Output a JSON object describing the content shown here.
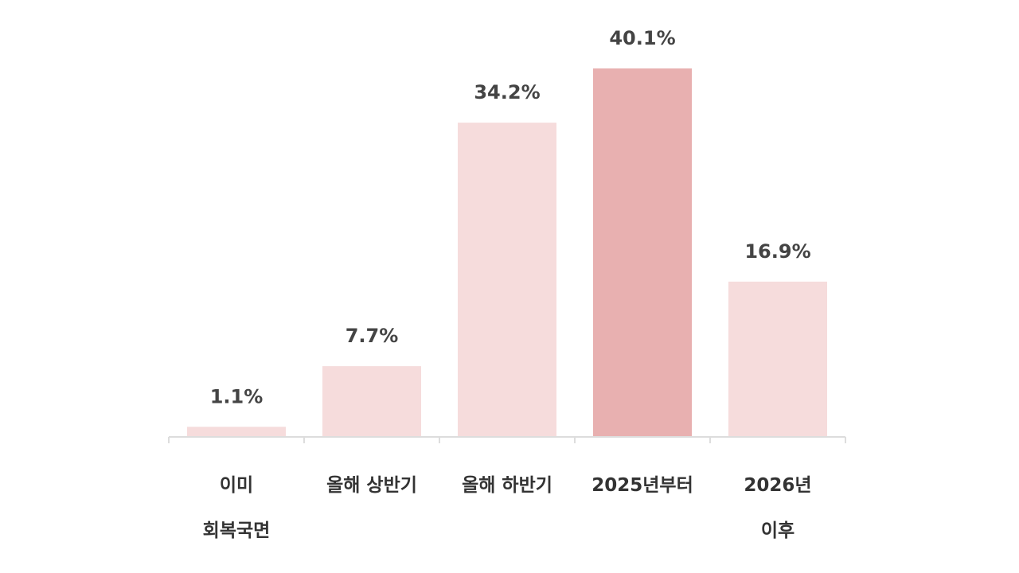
{
  "chart_data": {
    "type": "bar",
    "categories": [
      "이미\n회복국면",
      "올해 상반기",
      "올해 하반기",
      "2025년부터",
      "2026년\n이후"
    ],
    "values": [
      1.1,
      7.7,
      34.2,
      40.1,
      16.9
    ],
    "value_labels": [
      "1.1%",
      "7.7%",
      "34.2%",
      "40.1%",
      "16.9%"
    ],
    "colors": [
      "#f6dcdc",
      "#f6dcdc",
      "#f6dcdc",
      "#e8b0b0",
      "#f6dcdc"
    ]
  }
}
